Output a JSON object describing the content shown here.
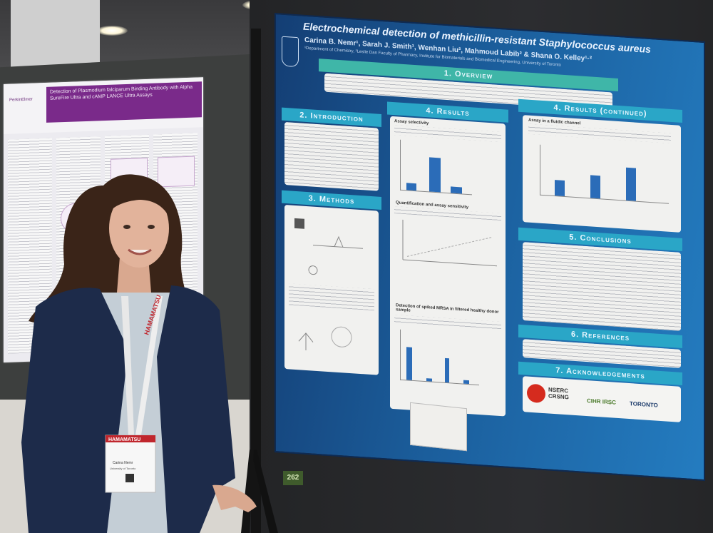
{
  "right_poster": {
    "title": "Electrochemical detection of methicillin-resistant Staphylococcus aureus",
    "authors": "Carina B. Nemr¹, Sarah J. Smith¹, Wenhan Liu², Mahmoud Labib² & Shana O. Kelley¹·²",
    "affiliation": "¹Department of Chemistry, ²Leslie Dan Faculty of Pharmacy, Institute for Biomaterials and Biomedical Engineering, University of Toronto",
    "sections": {
      "overview": "1. Overview",
      "introduction": "2. Introduction",
      "methods": "3. Methods",
      "results": "4. Results",
      "results_continued": "4. Results (continued)",
      "conclusions": "5. Conclusions",
      "references": "6. References",
      "acknowledgements": "7. Acknowledgements"
    },
    "subheads": {
      "assay_selectivity": "Assay selectivity",
      "quantification": "Quantification and assay sensitivity",
      "spiked": "Detection of spiked MRSA in filtered healthy donor sample",
      "fluidic": "Assay in a fluidic channel"
    },
    "logos": {
      "nserc": "NSERC CRSNG",
      "cihr": "CIHR IRSC",
      "toronto": "TORONTO"
    }
  },
  "left_poster": {
    "brand": "PerkinElmer",
    "title": "Detection of Plasmodium falciparum Binding Antibody with Alpha SureFire Ultra and cAMP LANCE Ultra Assays"
  },
  "badge": {
    "lanyard": "HAMAMATSU",
    "header": "HAMAMATSU",
    "name": "Carina Nemr",
    "org": "University of Toronto"
  },
  "board_tag": "262",
  "colors": {
    "poster_blue": "#1b5e9c",
    "section_teal": "#2aa6c7",
    "blazer_navy": "#1d2b4a",
    "left_poster_purple": "#7a2a8a"
  }
}
